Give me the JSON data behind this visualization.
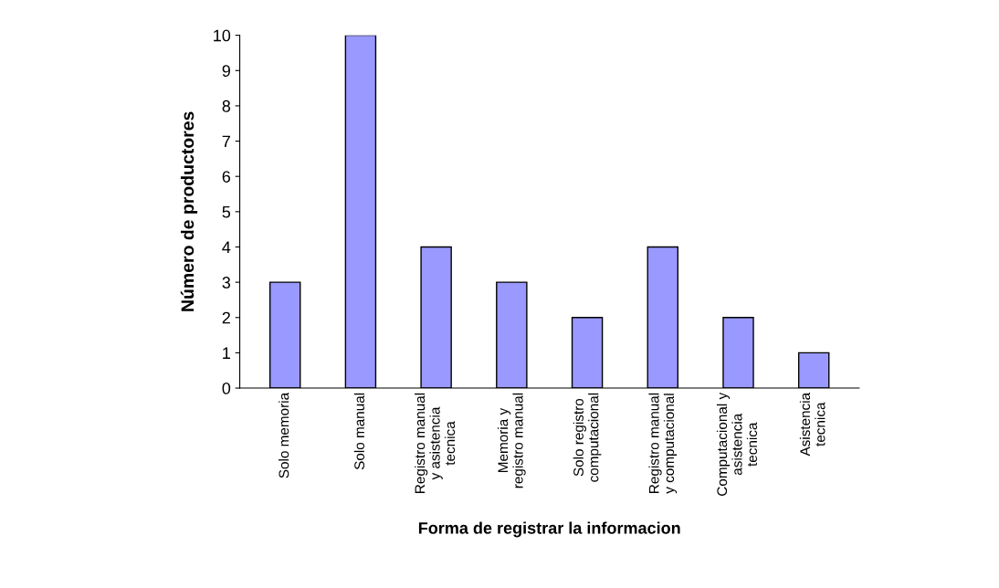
{
  "chart_data": {
    "type": "bar",
    "categories": [
      "Solo memoria",
      "Solo manual",
      "Registro manual\ny asistencia\ntecnica",
      "Memoria y\nregistro manual",
      "Solo registro\ncomputacional",
      "Registro manual\ny computacional",
      "Computacional y\nasistencia\ntecnica",
      "Asistencia\ntecnica"
    ],
    "values": [
      3,
      10,
      4,
      3,
      2,
      4,
      2,
      1
    ],
    "color": "#9999ff",
    "xlabel": "Forma de registrar la informacion",
    "ylabel": "Número de productores",
    "ylim": [
      0,
      10
    ],
    "yticks": [
      0,
      1,
      2,
      3,
      4,
      5,
      6,
      7,
      8,
      9,
      10
    ],
    "grid": false,
    "legend": false
  }
}
